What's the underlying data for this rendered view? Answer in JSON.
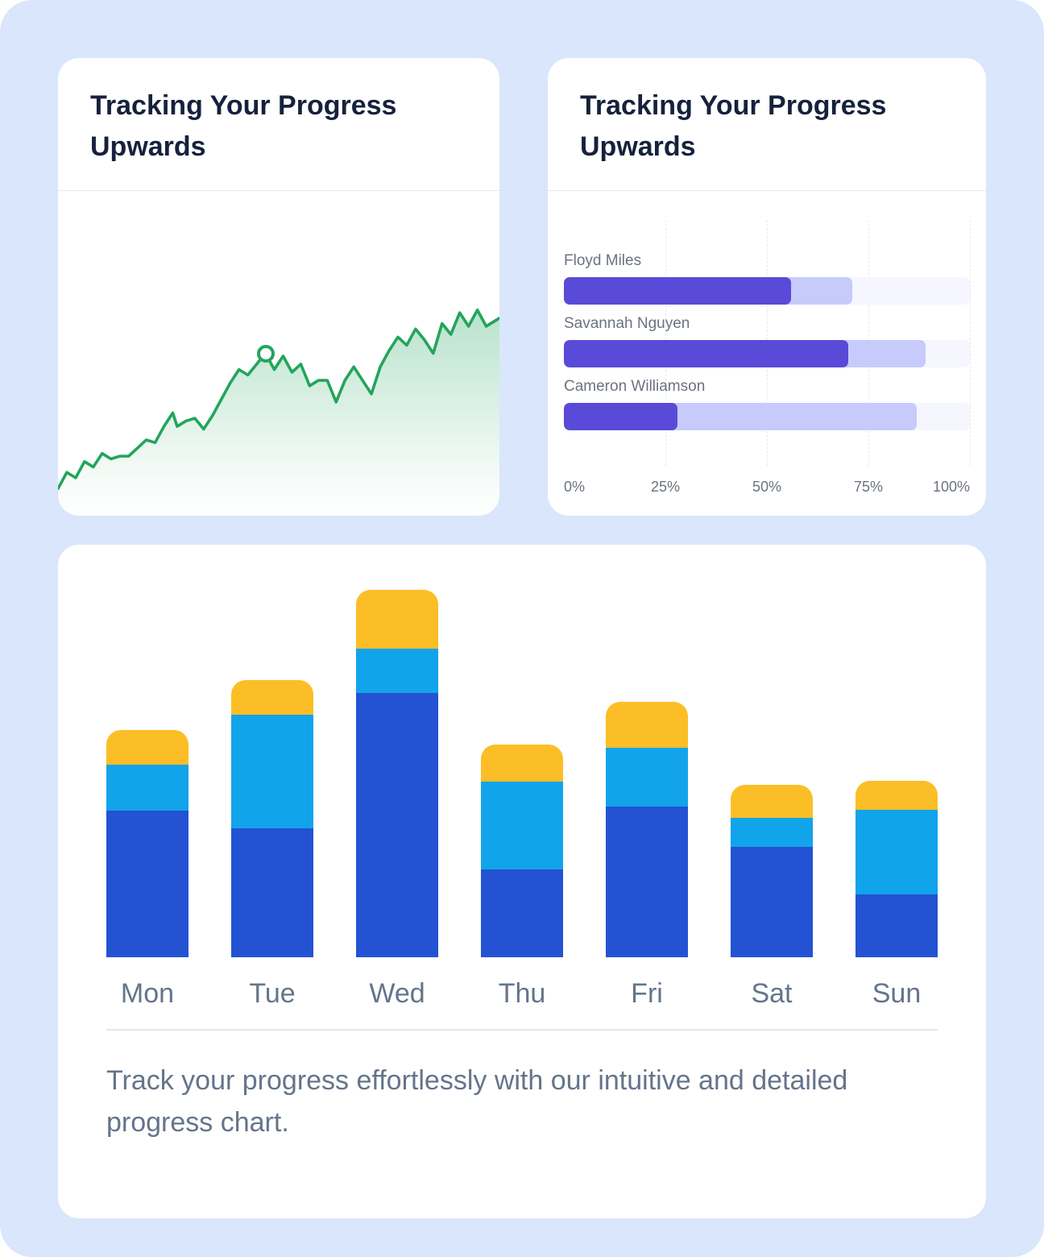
{
  "theme": {
    "page_bg": "#d9e6fc",
    "card_bg": "#ffffff",
    "title_color": "#16213c",
    "muted": "#6b7280",
    "muted_big": "#64748b",
    "divider": "#e6e8ee",
    "green": "#22a55c",
    "purple_dark": "#5a4ad8",
    "purple_light": "#c6cbfb",
    "purple_track": "#f5f6fe",
    "bar_blue": "#2352d3",
    "bar_cyan": "#12a4ea",
    "bar_yellow": "#fcbe26"
  },
  "chart_data": [
    {
      "type": "line",
      "title": "Tracking Your Progress Upwards",
      "color": "#22a55c",
      "fill": "gradient-green-to-transparent",
      "x_range": [
        0,
        100
      ],
      "y_range": [
        0,
        60
      ],
      "points": [
        [
          0,
          55
        ],
        [
          2,
          52
        ],
        [
          4,
          53
        ],
        [
          6,
          50
        ],
        [
          8,
          51
        ],
        [
          10,
          48.5
        ],
        [
          12,
          49.5
        ],
        [
          14,
          49
        ],
        [
          16,
          49
        ],
        [
          18,
          47.5
        ],
        [
          20,
          46
        ],
        [
          22,
          46.5
        ],
        [
          24,
          43.5
        ],
        [
          26,
          41
        ],
        [
          27,
          43.5
        ],
        [
          29,
          42.5
        ],
        [
          31,
          42
        ],
        [
          33,
          44
        ],
        [
          35,
          41.5
        ],
        [
          37,
          38.5
        ],
        [
          39,
          35.5
        ],
        [
          41,
          33
        ],
        [
          43,
          34
        ],
        [
          45,
          32
        ],
        [
          47,
          30
        ],
        [
          49,
          33
        ],
        [
          51,
          30.5
        ],
        [
          53,
          33.5
        ],
        [
          55,
          32
        ],
        [
          57,
          36
        ],
        [
          59,
          35
        ],
        [
          61,
          35
        ],
        [
          63,
          39
        ],
        [
          65,
          35
        ],
        [
          67,
          32.5
        ],
        [
          69,
          35
        ],
        [
          71,
          37.5
        ],
        [
          73,
          32.5
        ],
        [
          75,
          29.5
        ],
        [
          77,
          27
        ],
        [
          79,
          28.5
        ],
        [
          81,
          25.5
        ],
        [
          83,
          27.5
        ],
        [
          85,
          30
        ],
        [
          87,
          24.5
        ],
        [
          89,
          26.5
        ],
        [
          91,
          22.5
        ],
        [
          93,
          25
        ],
        [
          95,
          22
        ],
        [
          97,
          25
        ],
        [
          100,
          23.5
        ]
      ],
      "marker_index": 24,
      "grid": false,
      "legend": "none"
    },
    {
      "type": "bar",
      "orientation": "horizontal",
      "title": "Tracking Your Progress Upwards",
      "categories": [
        "Floyd Miles",
        "Savannah Nguyen",
        "Cameron Williamson"
      ],
      "series": [
        {
          "name": "dark-purple",
          "color": "#5a4ad8",
          "values": [
            56,
            70,
            28
          ]
        },
        {
          "name": "light-purple",
          "color": "#c6cbfb",
          "values": [
            71,
            89,
            87
          ]
        }
      ],
      "xlim": [
        0,
        100
      ],
      "tick_labels": [
        "0%",
        "25%",
        "50%",
        "75%",
        "100%"
      ],
      "grid": "dashed-vertical",
      "legend": "none"
    },
    {
      "type": "bar",
      "stacked": true,
      "categories": [
        "Mon",
        "Tue",
        "Wed",
        "Thu",
        "Fri",
        "Sat",
        "Sun"
      ],
      "series": [
        {
          "name": "dark-blue",
          "color": "#2352d3",
          "values": [
            40,
            35,
            72,
            24,
            41,
            30,
            17
          ]
        },
        {
          "name": "light-blue",
          "color": "#12a4ea",
          "values": [
            12.5,
            31,
            12,
            24,
            16,
            8,
            23
          ]
        },
        {
          "name": "yellow",
          "color": "#fcbe26",
          "values": [
            9.5,
            9.5,
            16,
            10,
            12.5,
            9,
            8
          ]
        }
      ],
      "ylim": [
        0,
        100
      ],
      "grid": false,
      "legend": "none",
      "caption": "Track your progress effortlessly with our intuitive and detailed progress chart."
    }
  ]
}
